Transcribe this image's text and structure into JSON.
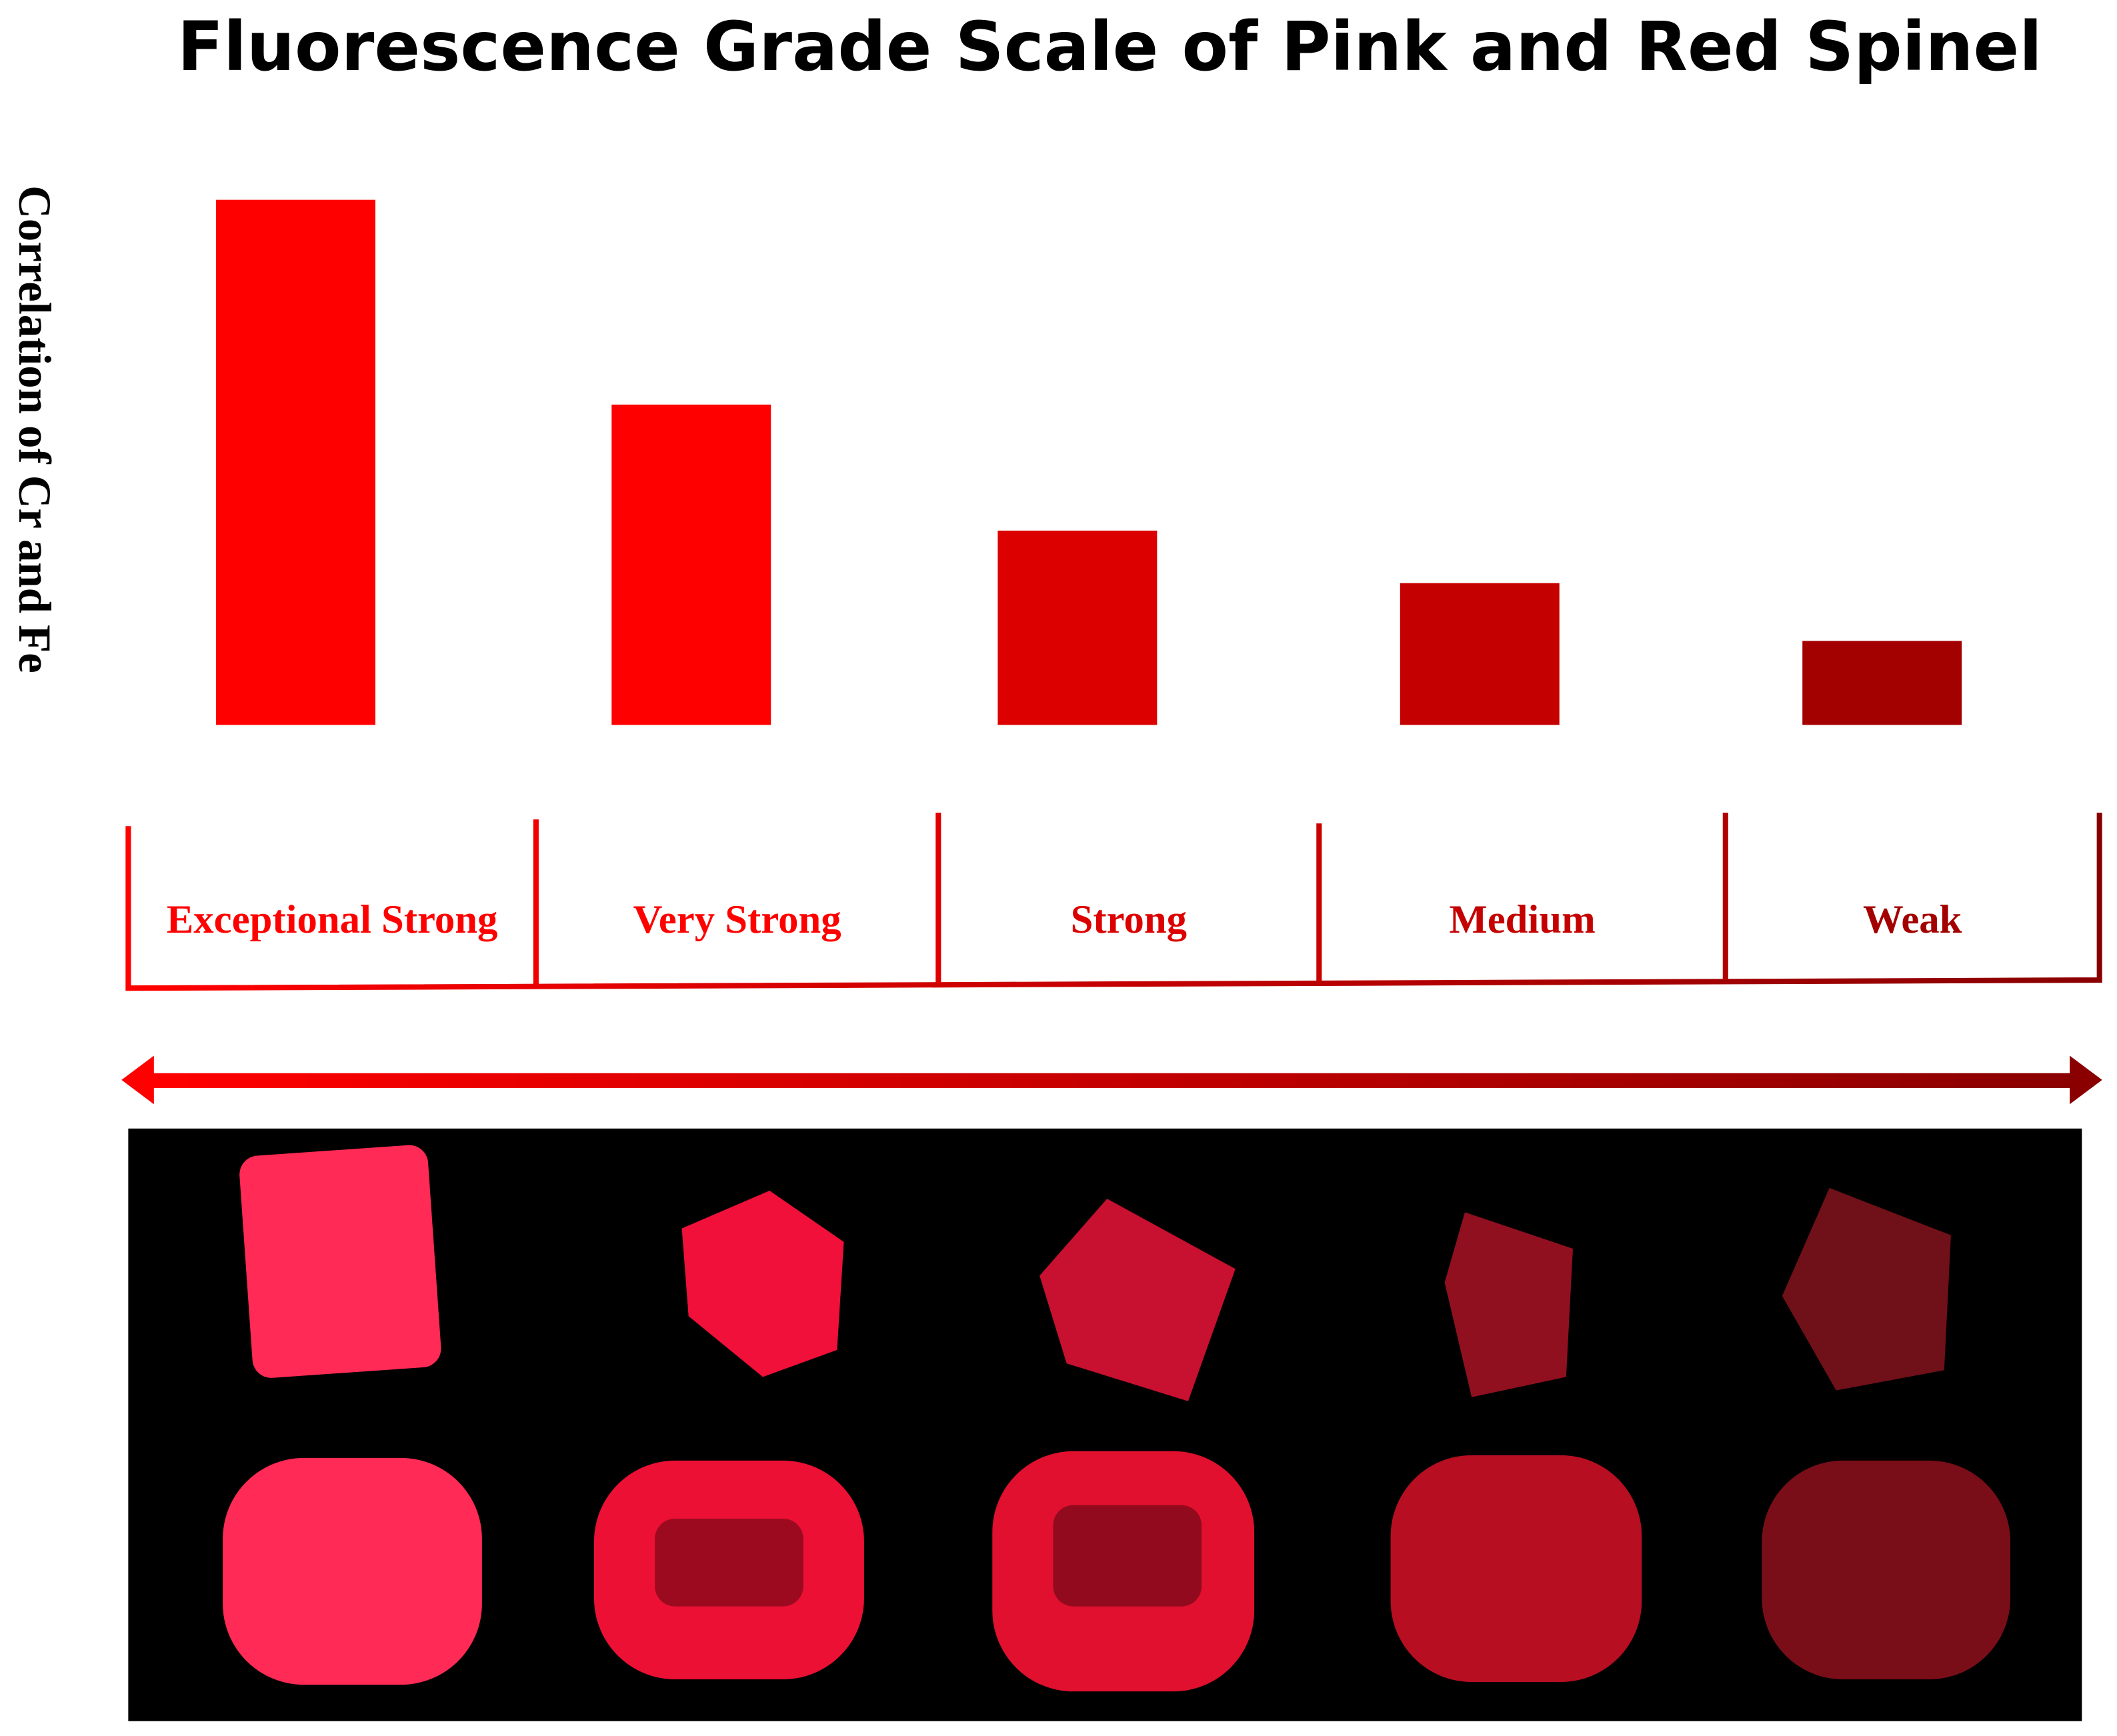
{
  "chart_data": {
    "type": "bar",
    "title": "Fluorescence Grade Scale of Pink and Red Spinel",
    "y_label": "Correlation of Cr and Fe",
    "categories": [
      "Exceptional Strong",
      "Very Strong",
      "Strong",
      "Medium",
      "Weak"
    ],
    "values": [
      100,
      61,
      37,
      27,
      16
    ],
    "colors": [
      "#ff0000",
      "#fe0000",
      "#dc0000",
      "#c40000",
      "#a30000"
    ]
  }
}
